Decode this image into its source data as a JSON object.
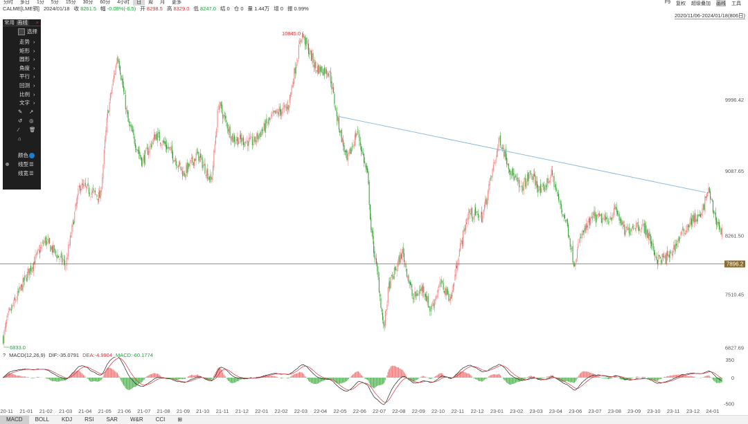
{
  "toolbar": {
    "timeframes": [
      "分时",
      "多日",
      "1分",
      "5分",
      "15分",
      "30分",
      "60分",
      "4小时",
      "日",
      "周",
      "月",
      "更多"
    ],
    "active": "日",
    "right": [
      "F9",
      "复权",
      "超级叠加",
      "画线",
      "工具"
    ]
  },
  "quote": {
    "symbol": "CALME[LME铜]",
    "date": "2024/01/18",
    "close_label": "收",
    "close": "8261.5",
    "change_label": "幅",
    "change": "-0.08%(-6.5)",
    "open_label": "开",
    "open": "8298.5",
    "high_label": "高",
    "high": "8329.0",
    "low_label": "低",
    "low": "8247.0",
    "settle_label": "结",
    "settle": "0",
    "oi_label": "仓",
    "oi": "0",
    "volume_label": "量",
    "volume": "1.44万",
    "increase_label": "增",
    "increase": "0",
    "amplitude_label": "振",
    "amplitude": "0.99%"
  },
  "date_range": "2020/11/06-2024/01/18(806日)",
  "tool_panel": {
    "tabs": [
      "常用",
      "画线"
    ],
    "select_label": "选择",
    "items": [
      "走势",
      "矩形",
      "圆形",
      "角度",
      "平行",
      "回测",
      "比例",
      "文字"
    ],
    "color_label": "颜色",
    "linetype_label": "线型",
    "linewidth_label": "线宽",
    "color": "#1a7fd4"
  },
  "chart_data": {
    "type": "candlestick",
    "y_ticks": [
      "9996.42",
      "9087.65",
      "8261.50",
      "7510.45",
      "6827.69"
    ],
    "y_tick_values": [
      9996.42,
      9087.65,
      8261.5,
      7510.45,
      6827.69
    ],
    "ylim": [
      6780,
      11020
    ],
    "x_ticks": [
      "20-11",
      "21-01",
      "21-02",
      "21-03",
      "21-04",
      "21-05",
      "21-06",
      "21-07",
      "21-08",
      "21-09",
      "21-10",
      "21-11",
      "21-12",
      "22-01",
      "22-02",
      "22-03",
      "22-04",
      "22-05",
      "22-06",
      "22-07",
      "22-08",
      "22-09",
      "22-10",
      "22-11",
      "22-12",
      "23-01",
      "23-02",
      "23-03",
      "23-04",
      "23-06",
      "23-07",
      "23-08",
      "23-09",
      "23-10",
      "23-11",
      "23-12",
      "24-01"
    ],
    "max_label": "10845.0",
    "min_label": "6833.0",
    "horizontal_line": {
      "value": 7896.2,
      "label": "7896.2",
      "color": "#8b6d2b"
    },
    "trend_line": {
      "from_date": "22-05",
      "from_value": 9780,
      "to_date": "24-01",
      "to_value": 8810,
      "color": "#7fb3e0"
    },
    "anchors": [
      [
        0,
        6950
      ],
      [
        6,
        7200
      ],
      [
        30,
        7680
      ],
      [
        60,
        8200
      ],
      [
        90,
        7880
      ],
      [
        110,
        8900
      ],
      [
        140,
        8750
      ],
      [
        150,
        9800
      ],
      [
        165,
        10580
      ],
      [
        180,
        9700
      ],
      [
        200,
        9200
      ],
      [
        220,
        9550
      ],
      [
        240,
        9350
      ],
      [
        260,
        9050
      ],
      [
        280,
        9300
      ],
      [
        300,
        8950
      ],
      [
        310,
        9950
      ],
      [
        330,
        9500
      ],
      [
        360,
        9450
      ],
      [
        390,
        9800
      ],
      [
        410,
        9900
      ],
      [
        430,
        10845
      ],
      [
        450,
        10400
      ],
      [
        470,
        10350
      ],
      [
        480,
        9800
      ],
      [
        495,
        9200
      ],
      [
        510,
        9600
      ],
      [
        525,
        9000
      ],
      [
        530,
        8300
      ],
      [
        540,
        7700
      ],
      [
        548,
        7050
      ],
      [
        555,
        7600
      ],
      [
        575,
        8050
      ],
      [
        590,
        7450
      ],
      [
        605,
        7600
      ],
      [
        615,
        7300
      ],
      [
        630,
        7650
      ],
      [
        645,
        7450
      ],
      [
        655,
        8000
      ],
      [
        670,
        8550
      ],
      [
        690,
        8500
      ],
      [
        700,
        8900
      ],
      [
        715,
        9500
      ],
      [
        730,
        9100
      ],
      [
        745,
        8850
      ],
      [
        760,
        9050
      ],
      [
        775,
        8800
      ],
      [
        790,
        9050
      ],
      [
        800,
        8700
      ],
      [
        812,
        8400
      ],
      [
        822,
        7896
      ],
      [
        832,
        8250
      ],
      [
        850,
        8500
      ],
      [
        870,
        8450
      ],
      [
        882,
        8600
      ],
      [
        895,
        8300
      ],
      [
        910,
        8400
      ],
      [
        925,
        8350
      ],
      [
        942,
        7950
      ],
      [
        958,
        7980
      ],
      [
        975,
        8250
      ],
      [
        990,
        8450
      ],
      [
        1005,
        8500
      ],
      [
        1015,
        8850
      ],
      [
        1025,
        8500
      ],
      [
        1035,
        8290
      ]
    ],
    "macd": {
      "label": "MACD(12,26,9)",
      "dif_label": "DIF:",
      "dif": "-35.0791",
      "dea_label": "DEA:",
      "dea": "-4.9904",
      "macd_label": "MACD:",
      "macd": "-60.1774",
      "ticks": [
        "350",
        "0",
        "-500"
      ],
      "tick_values": [
        350,
        0,
        -500
      ],
      "ylim": [
        -560,
        400
      ]
    }
  },
  "bottom_tabs": [
    "MACD",
    "BOLL",
    "KDJ",
    "RSI",
    "SAR",
    "W&R",
    "CCI",
    "⊞"
  ],
  "bottom_active": "MACD"
}
